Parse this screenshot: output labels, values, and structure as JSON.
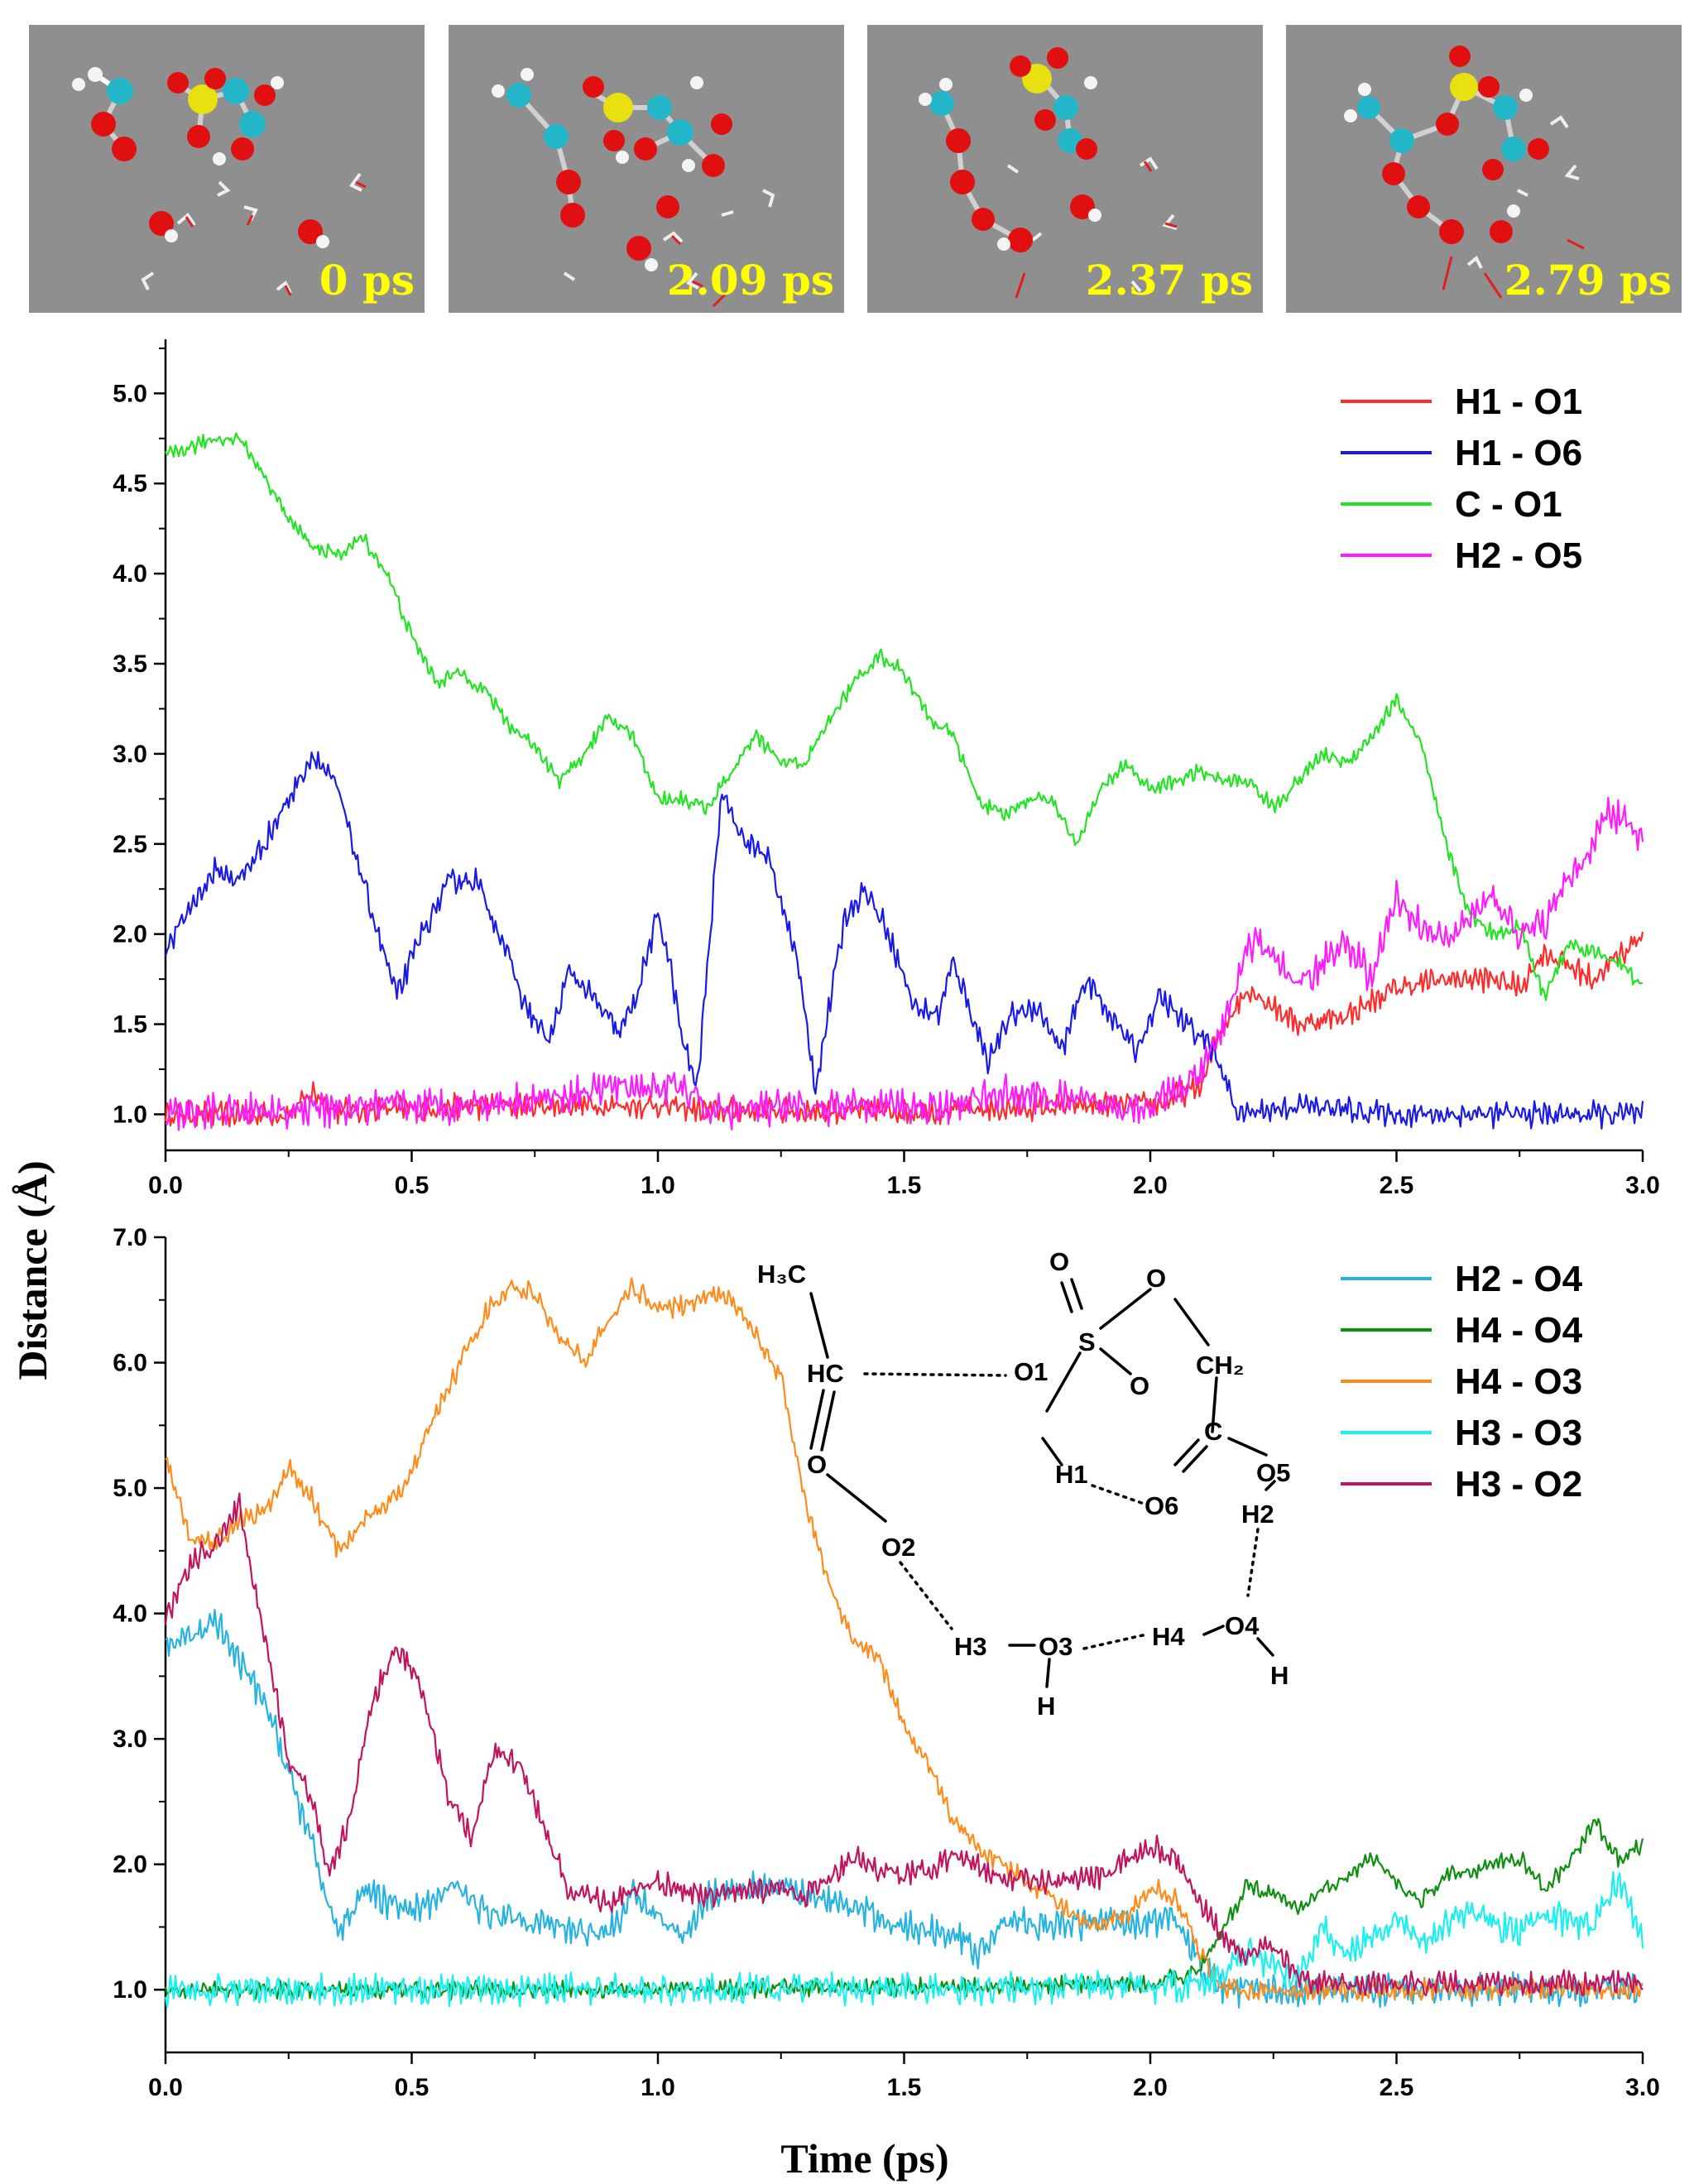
{
  "colors": {
    "h1_o1": "#ff2b2b",
    "h1_o6": "#1a1ae6",
    "c_o1": "#22e422",
    "h2_o5": "#ff1aff",
    "h2_o4": "#26b3df",
    "h4_o4": "#0f8f0f",
    "h4_o3": "#ff8c1a",
    "h3_o3": "#1af0f0",
    "h3_o2": "#c0145e",
    "snapshot_bg": "#8f8f8f",
    "label": "#ffff00"
  },
  "snapshots": [
    {
      "label": "0 ps"
    },
    {
      "label": "2.09 ps"
    },
    {
      "label": "2.37 ps"
    },
    {
      "label": "2.79 ps"
    }
  ],
  "axes": {
    "shared_ylabel": "Distance (Å)",
    "xlabel": "Time (ps)"
  },
  "scheme": {
    "labels": {
      "h3c": "H₃C",
      "hc": "HC",
      "o_top1": "O",
      "s": "S",
      "o_top2": "O",
      "o_right": "O",
      "ch2": "CH₂",
      "o1": "O1",
      "h1": "H1",
      "o6": "O6",
      "c": "C",
      "o5": "O5",
      "h2": "H2",
      "o": "O",
      "o2": "O2",
      "h3": "H3",
      "o3": "O3",
      "h_o3": "H",
      "h4": "H4",
      "o4": "O4",
      "h_o4": "H"
    }
  },
  "chart_data": [
    {
      "type": "line",
      "xlim": [
        0,
        3.0
      ],
      "ylim": [
        0.8,
        5.3
      ],
      "xticks": [
        "0.0",
        "0.5",
        "1.0",
        "1.5",
        "2.0",
        "2.5",
        "3.0"
      ],
      "yticks": [
        "1.0",
        "1.5",
        "2.0",
        "2.5",
        "3.0",
        "3.5",
        "4.0",
        "4.5",
        "5.0"
      ],
      "legend_position": "top-right",
      "series": [
        {
          "name": "H1 - O1",
          "color_key": "h1_o1",
          "noise": 0.05,
          "x": [
            0,
            0.25,
            0.3,
            0.35,
            0.7,
            0.9,
            1.0,
            1.1,
            1.3,
            1.6,
            1.9,
            2.0,
            2.1,
            2.15,
            2.2,
            2.25,
            2.3,
            2.4,
            2.5,
            2.6,
            2.7,
            2.75,
            2.8,
            2.9,
            3.0
          ],
          "y": [
            1.0,
            1.0,
            1.12,
            1.02,
            1.05,
            1.05,
            1.05,
            1.02,
            1.02,
            1.02,
            1.05,
            1.05,
            1.15,
            1.5,
            1.7,
            1.6,
            1.5,
            1.55,
            1.7,
            1.75,
            1.75,
            1.7,
            1.9,
            1.75,
            2.0
          ]
        },
        {
          "name": "H1 - O6",
          "color_key": "h1_o6",
          "noise": 0.05,
          "x": [
            0,
            0.05,
            0.1,
            0.15,
            0.2,
            0.25,
            0.3,
            0.35,
            0.4,
            0.47,
            0.52,
            0.58,
            0.63,
            0.68,
            0.73,
            0.78,
            0.82,
            0.88,
            0.92,
            0.95,
            1.0,
            1.02,
            1.05,
            1.08,
            1.13,
            1.18,
            1.22,
            1.28,
            1.32,
            1.38,
            1.42,
            1.47,
            1.52,
            1.57,
            1.6,
            1.67,
            1.72,
            1.77,
            1.82,
            1.87,
            1.92,
            1.97,
            2.02,
            2.07,
            2.12,
            2.18,
            2.3,
            2.5,
            2.8,
            3.0
          ],
          "y": [
            1.9,
            2.15,
            2.35,
            2.3,
            2.5,
            2.75,
            3.0,
            2.8,
            2.3,
            1.65,
            2.0,
            2.3,
            2.3,
            2.0,
            1.6,
            1.4,
            1.8,
            1.6,
            1.45,
            1.6,
            2.1,
            1.9,
            1.4,
            1.15,
            2.8,
            2.5,
            2.45,
            1.9,
            1.15,
            2.1,
            2.25,
            2.0,
            1.6,
            1.55,
            1.85,
            1.3,
            1.55,
            1.6,
            1.35,
            1.75,
            1.55,
            1.35,
            1.65,
            1.5,
            1.4,
            1.0,
            1.05,
            1.0,
            1.0,
            1.0
          ]
        },
        {
          "name": "C - O1",
          "color_key": "c_o1",
          "noise": 0.03,
          "x": [
            0,
            0.05,
            0.1,
            0.15,
            0.2,
            0.25,
            0.3,
            0.35,
            0.4,
            0.45,
            0.5,
            0.55,
            0.6,
            0.65,
            0.7,
            0.75,
            0.8,
            0.85,
            0.9,
            0.95,
            1.0,
            1.05,
            1.1,
            1.15,
            1.2,
            1.25,
            1.3,
            1.35,
            1.4,
            1.45,
            1.5,
            1.55,
            1.6,
            1.65,
            1.7,
            1.75,
            1.8,
            1.85,
            1.9,
            1.95,
            2.0,
            2.05,
            2.1,
            2.15,
            2.2,
            2.25,
            2.3,
            2.35,
            2.4,
            2.45,
            2.5,
            2.55,
            2.6,
            2.65,
            2.7,
            2.75,
            2.8,
            2.85,
            2.9,
            2.95,
            3.0
          ],
          "y": [
            4.65,
            4.7,
            4.75,
            4.75,
            4.55,
            4.3,
            4.15,
            4.1,
            4.2,
            4.0,
            3.65,
            3.4,
            3.45,
            3.35,
            3.15,
            3.05,
            2.85,
            3.0,
            3.2,
            3.1,
            2.75,
            2.75,
            2.7,
            2.9,
            3.1,
            2.95,
            2.95,
            3.2,
            3.4,
            3.55,
            3.45,
            3.2,
            3.1,
            2.75,
            2.65,
            2.75,
            2.75,
            2.5,
            2.8,
            2.95,
            2.8,
            2.85,
            2.9,
            2.85,
            2.85,
            2.7,
            2.85,
            3.0,
            2.95,
            3.1,
            3.3,
            3.05,
            2.5,
            2.1,
            2.0,
            2.05,
            1.65,
            1.95,
            1.9,
            1.85,
            1.7
          ]
        },
        {
          "name": "H2 - O5",
          "color_key": "h2_o5",
          "noise": 0.07,
          "x": [
            0,
            0.6,
            0.8,
            0.9,
            1.0,
            1.05,
            1.1,
            1.6,
            1.7,
            1.9,
            2.0,
            2.1,
            2.15,
            2.2,
            2.25,
            2.3,
            2.35,
            2.4,
            2.45,
            2.5,
            2.55,
            2.6,
            2.65,
            2.7,
            2.75,
            2.8,
            2.85,
            2.9,
            2.93,
            2.97,
            3.0
          ],
          "y": [
            1.0,
            1.05,
            1.1,
            1.15,
            1.15,
            1.15,
            1.02,
            1.05,
            1.12,
            1.05,
            1.05,
            1.2,
            1.5,
            1.95,
            1.9,
            1.7,
            1.85,
            1.95,
            1.75,
            2.2,
            2.05,
            1.95,
            2.1,
            2.2,
            2.0,
            2.05,
            2.3,
            2.5,
            2.7,
            2.6,
            2.5
          ]
        }
      ]
    },
    {
      "type": "line",
      "xlim": [
        0,
        3.0
      ],
      "ylim": [
        0.5,
        7.0
      ],
      "xticks": [
        "0.0",
        "0.5",
        "1.0",
        "1.5",
        "2.0",
        "2.5",
        "3.0"
      ],
      "yticks": [
        "1.0",
        "2.0",
        "3.0",
        "4.0",
        "5.0",
        "6.0",
        "7.0"
      ],
      "legend_position": "top-right",
      "series": [
        {
          "name": "H2 - O4",
          "color_key": "h2_o4",
          "noise": 0.09,
          "x": [
            0,
            0.05,
            0.1,
            0.15,
            0.2,
            0.25,
            0.3,
            0.35,
            0.4,
            0.45,
            0.5,
            0.6,
            0.65,
            0.7,
            0.8,
            0.9,
            0.95,
            1.0,
            1.05,
            1.1,
            1.2,
            1.3,
            1.4,
            1.5,
            1.6,
            1.65,
            1.7,
            1.8,
            1.9,
            2.0,
            2.05,
            2.1,
            2.15,
            2.2,
            2.5,
            3.0
          ],
          "y": [
            3.75,
            3.8,
            3.95,
            3.6,
            3.3,
            2.75,
            2.1,
            1.45,
            1.8,
            1.7,
            1.6,
            1.85,
            1.6,
            1.6,
            1.5,
            1.45,
            1.75,
            1.6,
            1.4,
            1.75,
            1.85,
            1.75,
            1.65,
            1.5,
            1.45,
            1.3,
            1.55,
            1.5,
            1.55,
            1.55,
            1.55,
            1.2,
            1.0,
            1.0,
            1.0,
            1.0
          ]
        },
        {
          "name": "H4 - O4",
          "color_key": "h4_o4",
          "noise": 0.05,
          "x": [
            0,
            1.0,
            1.7,
            2.0,
            2.1,
            2.15,
            2.2,
            2.25,
            2.3,
            2.35,
            2.4,
            2.45,
            2.5,
            2.55,
            2.6,
            2.65,
            2.7,
            2.75,
            2.8,
            2.85,
            2.9,
            2.95,
            3.0
          ],
          "y": [
            1.0,
            1.0,
            1.03,
            1.05,
            1.15,
            1.5,
            1.85,
            1.75,
            1.65,
            1.8,
            1.9,
            2.05,
            1.85,
            1.7,
            1.9,
            1.95,
            2.0,
            2.05,
            1.8,
            2.0,
            2.35,
            2.05,
            2.15
          ]
        },
        {
          "name": "H4 - O3",
          "color_key": "h4_o3",
          "noise": 0.06,
          "x": [
            0,
            0.05,
            0.1,
            0.15,
            0.2,
            0.25,
            0.3,
            0.35,
            0.4,
            0.45,
            0.5,
            0.55,
            0.6,
            0.65,
            0.7,
            0.75,
            0.8,
            0.85,
            0.9,
            0.95,
            1.0,
            1.05,
            1.1,
            1.15,
            1.2,
            1.25,
            1.3,
            1.35,
            1.4,
            1.45,
            1.5,
            1.55,
            1.6,
            1.65,
            1.7,
            1.75,
            1.8,
            1.85,
            1.9,
            1.95,
            2.0,
            2.05,
            2.1,
            2.15,
            2.2,
            2.3,
            3.0
          ],
          "y": [
            5.25,
            4.6,
            4.55,
            4.75,
            4.8,
            5.15,
            4.9,
            4.5,
            4.75,
            4.85,
            5.1,
            5.6,
            6.0,
            6.4,
            6.6,
            6.55,
            6.2,
            6.0,
            6.35,
            6.6,
            6.45,
            6.45,
            6.55,
            6.5,
            6.2,
            5.9,
            4.9,
            4.2,
            3.75,
            3.65,
            3.1,
            2.8,
            2.35,
            2.15,
            2.0,
            1.85,
            1.75,
            1.55,
            1.5,
            1.6,
            1.8,
            1.75,
            1.3,
            1.0,
            1.0,
            1.0,
            1.0
          ]
        },
        {
          "name": "H3 - O3",
          "color_key": "h3_o3",
          "noise": 0.09,
          "x": [
            0,
            1.0,
            1.8,
            2.0,
            2.1,
            2.15,
            2.2,
            2.25,
            2.3,
            2.35,
            2.4,
            2.45,
            2.5,
            2.55,
            2.6,
            2.65,
            2.7,
            2.75,
            2.8,
            2.85,
            2.9,
            2.95,
            3.0
          ],
          "y": [
            1.0,
            1.0,
            1.02,
            1.02,
            1.05,
            1.15,
            1.3,
            1.2,
            1.1,
            1.5,
            1.3,
            1.45,
            1.55,
            1.4,
            1.5,
            1.65,
            1.5,
            1.45,
            1.6,
            1.55,
            1.5,
            1.9,
            1.45
          ]
        },
        {
          "name": "H3 - O2",
          "color_key": "h3_o2",
          "noise": 0.07,
          "x": [
            0,
            0.05,
            0.1,
            0.15,
            0.2,
            0.25,
            0.3,
            0.33,
            0.37,
            0.42,
            0.47,
            0.52,
            0.57,
            0.62,
            0.67,
            0.72,
            0.77,
            0.82,
            0.9,
            1.0,
            1.1,
            1.2,
            1.3,
            1.4,
            1.45,
            1.5,
            1.6,
            1.7,
            1.8,
            1.9,
            2.0,
            2.05,
            2.1,
            2.15,
            2.2,
            2.25,
            2.3,
            2.35,
            2.4,
            3.0
          ],
          "y": [
            3.95,
            4.4,
            4.55,
            4.85,
            3.8,
            2.85,
            2.5,
            1.95,
            2.3,
            3.3,
            3.75,
            3.4,
            2.6,
            2.2,
            2.9,
            2.8,
            2.25,
            1.8,
            1.7,
            1.85,
            1.75,
            1.8,
            1.75,
            2.05,
            1.95,
            1.9,
            2.05,
            1.9,
            1.85,
            1.9,
            2.15,
            2.05,
            1.7,
            1.4,
            1.25,
            1.35,
            1.1,
            1.05,
            1.05,
            1.05
          ]
        }
      ]
    }
  ]
}
